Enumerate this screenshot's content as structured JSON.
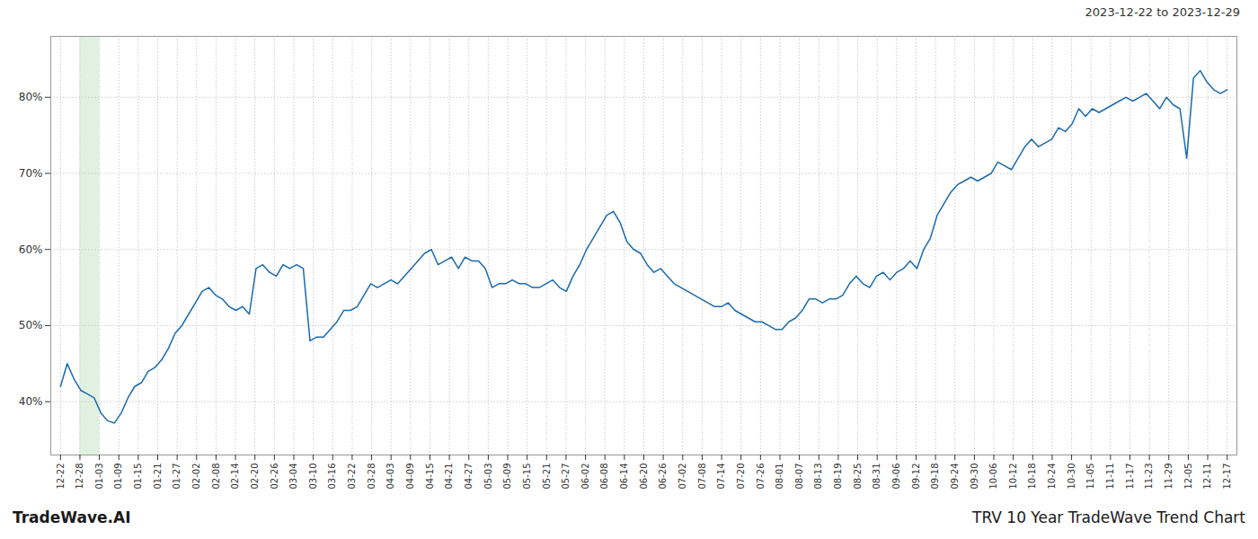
{
  "chart_data": {
    "type": "line",
    "title": "TRV 10 Year TradeWave Trend Chart",
    "subtitle": "2023-12-22 to 2023-12-29",
    "annotations": [
      "TradeWave.AI"
    ],
    "color": "#1a6aad",
    "grid": true,
    "x": [
      0,
      0.3468,
      0.6936,
      1.0405,
      1.3873,
      1.7341,
      2.0809,
      2.4277,
      2.7746,
      3.1214,
      3.4682,
      3.815,
      4.1618,
      4.5087,
      4.8555,
      5.2023,
      5.5491,
      5.896,
      6.2428,
      6.5896,
      6.9364,
      7.2832,
      7.6301,
      7.9769,
      8.3237,
      8.6705,
      9.0173,
      9.3642,
      9.711,
      10.0578,
      10.4046,
      10.7514,
      11.0983,
      11.4451,
      11.7919,
      12.1387,
      12.4855,
      12.8324,
      13.1792,
      13.526,
      13.8728,
      14.2197,
      14.5665,
      14.9133,
      15.2601,
      15.6069,
      15.9538,
      16.3006,
      16.6474,
      16.9942,
      17.341,
      17.6879,
      18.0347,
      18.3815,
      18.7283,
      19.0751,
      19.422,
      19.7688,
      20.1156,
      20.4624,
      20.8092,
      21.1561,
      21.5029,
      21.8497,
      22.1965,
      22.5434,
      22.8902,
      23.237,
      23.5838,
      23.9306,
      24.2775,
      24.6243,
      24.9711,
      25.3179,
      25.6647,
      26.0116,
      26.3584,
      26.7052,
      27.052,
      27.3988,
      27.7457,
      28.0925,
      28.4393,
      28.7861,
      29.1329,
      29.4798,
      29.8266,
      30.1734,
      30.5202,
      30.8671,
      31.2139,
      31.5607,
      31.9075,
      32.2543,
      32.6012,
      32.948,
      33.2948,
      33.6416,
      33.9884,
      34.3353,
      34.6821,
      35.0289,
      35.3757,
      35.7225,
      36.0694,
      36.4162,
      36.763,
      37.1098,
      37.4566,
      37.8035,
      38.1503,
      38.4971,
      38.8439,
      39.1908,
      39.5376,
      39.8844,
      40.2312,
      40.578,
      40.9249,
      41.2717,
      41.6185,
      41.9653,
      42.3121,
      42.659,
      43.0058,
      43.3526,
      43.6994,
      44.0462,
      44.3931,
      44.7399,
      45.0867,
      45.4335,
      45.7803,
      46.1272,
      46.474,
      46.8208,
      47.1676,
      47.5145,
      47.8613,
      48.2081,
      48.5549,
      48.9017,
      49.2486,
      49.5954,
      49.9422,
      50.289,
      50.6358,
      50.9827,
      51.3295,
      51.6763,
      52.0231,
      52.3699,
      52.7168,
      53.0636,
      53.4104,
      53.7572,
      54.104,
      54.4509,
      54.7977,
      55.1445,
      55.4913,
      55.8382,
      56.185,
      56.5318,
      56.8786,
      57.2254,
      57.5723,
      57.9191,
      58.2659,
      58.6127,
      58.9595,
      59.3064,
      59.6532,
      60
    ],
    "values": [
      42.0,
      45.0,
      43.0,
      41.5,
      41.0,
      40.5,
      38.5,
      37.5,
      37.2,
      38.5,
      40.5,
      42.0,
      42.5,
      44.0,
      44.5,
      45.5,
      47.0,
      49.0,
      50.0,
      51.5,
      53.0,
      54.5,
      55.0,
      54.0,
      53.5,
      52.5,
      52.0,
      52.5,
      51.5,
      57.5,
      58.0,
      57.0,
      56.5,
      58.0,
      57.5,
      58.0,
      57.5,
      48.0,
      48.5,
      48.5,
      49.5,
      50.5,
      52.0,
      52.0,
      52.5,
      54.0,
      55.5,
      55.0,
      55.5,
      56.0,
      55.5,
      56.5,
      57.5,
      58.5,
      59.5,
      60.0,
      58.0,
      58.5,
      59.0,
      57.5,
      59.0,
      58.5,
      58.5,
      57.5,
      55.0,
      55.5,
      55.5,
      56.0,
      55.5,
      55.5,
      55.0,
      55.0,
      55.5,
      56.0,
      55.0,
      54.5,
      56.5,
      58.0,
      60.0,
      61.5,
      63.0,
      64.5,
      65.0,
      63.5,
      61.0,
      60.0,
      59.5,
      58.0,
      57.0,
      57.5,
      56.5,
      55.5,
      55.0,
      54.5,
      54.0,
      53.5,
      53.0,
      52.5,
      52.5,
      53.0,
      52.0,
      51.5,
      51.0,
      50.5,
      50.5,
      50.0,
      49.5,
      49.5,
      50.5,
      51.0,
      52.0,
      53.5,
      53.5,
      53.0,
      53.5,
      53.5,
      54.0,
      55.5,
      56.5,
      55.5,
      55.0,
      56.5,
      57.0,
      56.0,
      57.0,
      57.5,
      58.5,
      57.5,
      60.0,
      61.5,
      64.5,
      66.0,
      67.5,
      68.5,
      69.0,
      69.5,
      69.0,
      69.5,
      70.0,
      71.5,
      71.0,
      70.5,
      72.0,
      73.5,
      74.5,
      73.5,
      74.0,
      74.5,
      76.0,
      75.5,
      76.5,
      78.5,
      77.5,
      78.5,
      78.0,
      78.5,
      79.0,
      79.5,
      80.0,
      79.5,
      80.0,
      80.5,
      79.5,
      78.5,
      80.0,
      79.0,
      78.5,
      72.0,
      82.5,
      83.5,
      82.0,
      81.0,
      80.5,
      81.0
    ],
    "xlim": [
      -0.5,
      60.5
    ],
    "xticks": [
      {
        "value": 0,
        "label": "12-22"
      },
      {
        "value": 1,
        "label": "12-28"
      },
      {
        "value": 2,
        "label": "01-03"
      },
      {
        "value": 3,
        "label": "01-09"
      },
      {
        "value": 4,
        "label": "01-15"
      },
      {
        "value": 5,
        "label": "01-21"
      },
      {
        "value": 6,
        "label": "01-27"
      },
      {
        "value": 7,
        "label": "02-02"
      },
      {
        "value": 8,
        "label": "02-08"
      },
      {
        "value": 9,
        "label": "02-14"
      },
      {
        "value": 10,
        "label": "02-20"
      },
      {
        "value": 11,
        "label": "02-26"
      },
      {
        "value": 12,
        "label": "03-04"
      },
      {
        "value": 13,
        "label": "03-10"
      },
      {
        "value": 14,
        "label": "03-16"
      },
      {
        "value": 15,
        "label": "03-22"
      },
      {
        "value": 16,
        "label": "03-28"
      },
      {
        "value": 17,
        "label": "04-03"
      },
      {
        "value": 18,
        "label": "04-09"
      },
      {
        "value": 19,
        "label": "04-15"
      },
      {
        "value": 20,
        "label": "04-21"
      },
      {
        "value": 21,
        "label": "04-27"
      },
      {
        "value": 22,
        "label": "05-03"
      },
      {
        "value": 23,
        "label": "05-09"
      },
      {
        "value": 24,
        "label": "05-15"
      },
      {
        "value": 25,
        "label": "05-21"
      },
      {
        "value": 26,
        "label": "05-27"
      },
      {
        "value": 27,
        "label": "06-02"
      },
      {
        "value": 28,
        "label": "06-08"
      },
      {
        "value": 29,
        "label": "06-14"
      },
      {
        "value": 30,
        "label": "06-20"
      },
      {
        "value": 31,
        "label": "06-26"
      },
      {
        "value": 32,
        "label": "07-02"
      },
      {
        "value": 33,
        "label": "07-08"
      },
      {
        "value": 34,
        "label": "07-14"
      },
      {
        "value": 35,
        "label": "07-20"
      },
      {
        "value": 36,
        "label": "07-26"
      },
      {
        "value": 37,
        "label": "08-01"
      },
      {
        "value": 38,
        "label": "08-07"
      },
      {
        "value": 39,
        "label": "08-13"
      },
      {
        "value": 40,
        "label": "08-19"
      },
      {
        "value": 41,
        "label": "08-25"
      },
      {
        "value": 42,
        "label": "08-31"
      },
      {
        "value": 43,
        "label": "09-06"
      },
      {
        "value": 44,
        "label": "09-12"
      },
      {
        "value": 45,
        "label": "09-18"
      },
      {
        "value": 46,
        "label": "09-24"
      },
      {
        "value": 47,
        "label": "09-30"
      },
      {
        "value": 48,
        "label": "10-06"
      },
      {
        "value": 49,
        "label": "10-12"
      },
      {
        "value": 50,
        "label": "10-18"
      },
      {
        "value": 51,
        "label": "10-24"
      },
      {
        "value": 52,
        "label": "10-30"
      },
      {
        "value": 53,
        "label": "11-05"
      },
      {
        "value": 54,
        "label": "11-11"
      },
      {
        "value": 55,
        "label": "11-17"
      },
      {
        "value": 56,
        "label": "11-23"
      },
      {
        "value": 57,
        "label": "11-29"
      },
      {
        "value": 58,
        "label": "12-05"
      },
      {
        "value": 59,
        "label": "12-11"
      },
      {
        "value": 60,
        "label": "12-17"
      }
    ],
    "ylim": [
      33,
      88
    ],
    "yticks": [
      {
        "value": 40,
        "label": "40%"
      },
      {
        "value": 50,
        "label": "50%"
      },
      {
        "value": 60,
        "label": "60%"
      },
      {
        "value": 70,
        "label": "70%"
      },
      {
        "value": 80,
        "label": "80%"
      }
    ],
    "highlight": {
      "x": [
        1,
        2
      ],
      "color": "#c8e6c9"
    }
  }
}
